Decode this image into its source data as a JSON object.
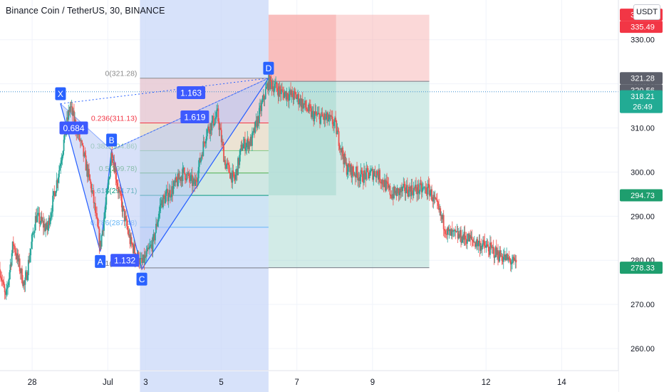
{
  "header": {
    "title": "Binance Coin / TetherUS, 30, BINANCE",
    "currency": "USDT"
  },
  "colors": {
    "up": "#26a69a",
    "down": "#ef5350",
    "pattern_fill": "#b9c9f5",
    "pattern_line": "#2962ff",
    "point_label_bg": "#2962ff",
    "ratio_label_bg": "#3d5afe",
    "stop_zone": "#f7a9a8",
    "target_zone": "#a5d8cf",
    "date_range_fill": "#c9d8f8",
    "price_line": "#3d8fd1",
    "axis_text": "#131722",
    "stop_tag": "#f23645",
    "target_tag": "#1e9e6e",
    "price_tag": "#22ab94"
  },
  "chart_data": {
    "type": "candlestick",
    "y_axis": {
      "ylim": [
        255,
        339
      ],
      "ticks": [
        260,
        270,
        280,
        290,
        300,
        310,
        320,
        330
      ],
      "tick_labels": [
        "260.00",
        "270.00",
        "280.00",
        "290.00",
        "300.00",
        "310.00",
        "320.00",
        "330.00"
      ],
      "position": "right"
    },
    "x_axis": {
      "xlim": [
        -0.85,
        15.5
      ],
      "ticks": [
        0,
        2,
        3,
        5,
        7,
        9,
        12,
        14
      ],
      "tick_labels": [
        "28",
        "Jul",
        "3",
        "5",
        "7",
        "9",
        "12",
        "14"
      ]
    },
    "price_path": [
      {
        "t": -0.85,
        "v": 278
      },
      {
        "t": -0.7,
        "v": 271
      },
      {
        "t": -0.5,
        "v": 284
      },
      {
        "t": -0.2,
        "v": 274
      },
      {
        "t": 0.1,
        "v": 290
      },
      {
        "t": 0.4,
        "v": 287
      },
      {
        "t": 0.7,
        "v": 300
      },
      {
        "t": 1.0,
        "v": 315
      },
      {
        "t": 1.3,
        "v": 306
      },
      {
        "t": 1.6,
        "v": 295
      },
      {
        "t": 1.8,
        "v": 283
      },
      {
        "t": 2.0,
        "v": 296
      },
      {
        "t": 2.1,
        "v": 305
      },
      {
        "t": 2.3,
        "v": 295
      },
      {
        "t": 2.6,
        "v": 284
      },
      {
        "t": 2.9,
        "v": 279
      },
      {
        "t": 3.2,
        "v": 284
      },
      {
        "t": 3.4,
        "v": 293
      },
      {
        "t": 3.7,
        "v": 296
      },
      {
        "t": 4.0,
        "v": 300
      },
      {
        "t": 4.3,
        "v": 297
      },
      {
        "t": 4.6,
        "v": 309
      },
      {
        "t": 4.9,
        "v": 313
      },
      {
        "t": 5.1,
        "v": 302
      },
      {
        "t": 5.35,
        "v": 298
      },
      {
        "t": 5.55,
        "v": 306
      },
      {
        "t": 5.8,
        "v": 307
      },
      {
        "t": 6.1,
        "v": 316
      },
      {
        "t": 6.25,
        "v": 320.5
      },
      {
        "t": 6.6,
        "v": 318
      },
      {
        "t": 7.0,
        "v": 317
      },
      {
        "t": 7.4,
        "v": 313
      },
      {
        "t": 7.8,
        "v": 312
      },
      {
        "t": 8.0,
        "v": 311
      },
      {
        "t": 8.3,
        "v": 301
      },
      {
        "t": 8.7,
        "v": 299
      },
      {
        "t": 9.1,
        "v": 300
      },
      {
        "t": 9.5,
        "v": 295
      },
      {
        "t": 9.9,
        "v": 296
      },
      {
        "t": 10.5,
        "v": 296
      },
      {
        "t": 11.0,
        "v": 286
      },
      {
        "t": 11.5,
        "v": 285
      },
      {
        "t": 12.0,
        "v": 283
      },
      {
        "t": 12.8,
        "v": 279
      }
    ],
    "harmonic_pattern": {
      "points": [
        {
          "label": "X",
          "t": 0.75,
          "v": 315.5
        },
        {
          "label": "A",
          "t": 1.8,
          "v": 282
        },
        {
          "label": "B",
          "t": 2.1,
          "v": 305
        },
        {
          "label": "C",
          "t": 2.9,
          "v": 278
        },
        {
          "label": "D",
          "t": 6.25,
          "v": 321.28
        }
      ],
      "ratios": [
        {
          "label": "0.684",
          "t": 1.1,
          "v": 310
        },
        {
          "label": "1.132",
          "t": 2.45,
          "v": 280
        },
        {
          "label": "1.619",
          "t": 4.3,
          "v": 312.5
        },
        {
          "label": "1.163",
          "t": 4.2,
          "v": 318
        }
      ]
    },
    "fib_levels": [
      {
        "label": "0(321.28)",
        "value": 321.28,
        "color": "#8a8a8a"
      },
      {
        "label": "0.236(311.13)",
        "value": 311.13,
        "color": "#f23645"
      },
      {
        "label": "0.382(304.86)",
        "value": 304.86,
        "color": "#81c784"
      },
      {
        "label": "0.5(299.78)",
        "value": 299.78,
        "color": "#4caf50"
      },
      {
        "label": "0.618(294.71)",
        "value": 294.71,
        "color": "#089981"
      },
      {
        "label": "0.786(287.48)",
        "value": 287.48,
        "color": "#64b5f6"
      },
      {
        "label": "1(278.28)",
        "value": 278.28,
        "color": "#787b86"
      }
    ],
    "position": {
      "t_start": 6.25,
      "t_end": 10.5,
      "entry": 320.56,
      "stop": 335.66,
      "target": 278.33
    },
    "date_range": {
      "t_start": 2.85,
      "t_end": 6.25
    },
    "price_labels": [
      {
        "value": 335.66,
        "label": "335.66",
        "kind": "stop"
      },
      {
        "value": 335.49,
        "label": "335.49",
        "kind": "stop"
      },
      {
        "value": 321.28,
        "label": "321.28",
        "kind": "fib"
      },
      {
        "value": 320.56,
        "label": "320.56",
        "kind": "entry"
      },
      {
        "value": 318.21,
        "label": "318.21",
        "sub": "26:49",
        "kind": "current"
      },
      {
        "value": 294.73,
        "label": "294.73",
        "kind": "target"
      },
      {
        "value": 278.33,
        "label": "278.33",
        "kind": "target"
      }
    ]
  }
}
